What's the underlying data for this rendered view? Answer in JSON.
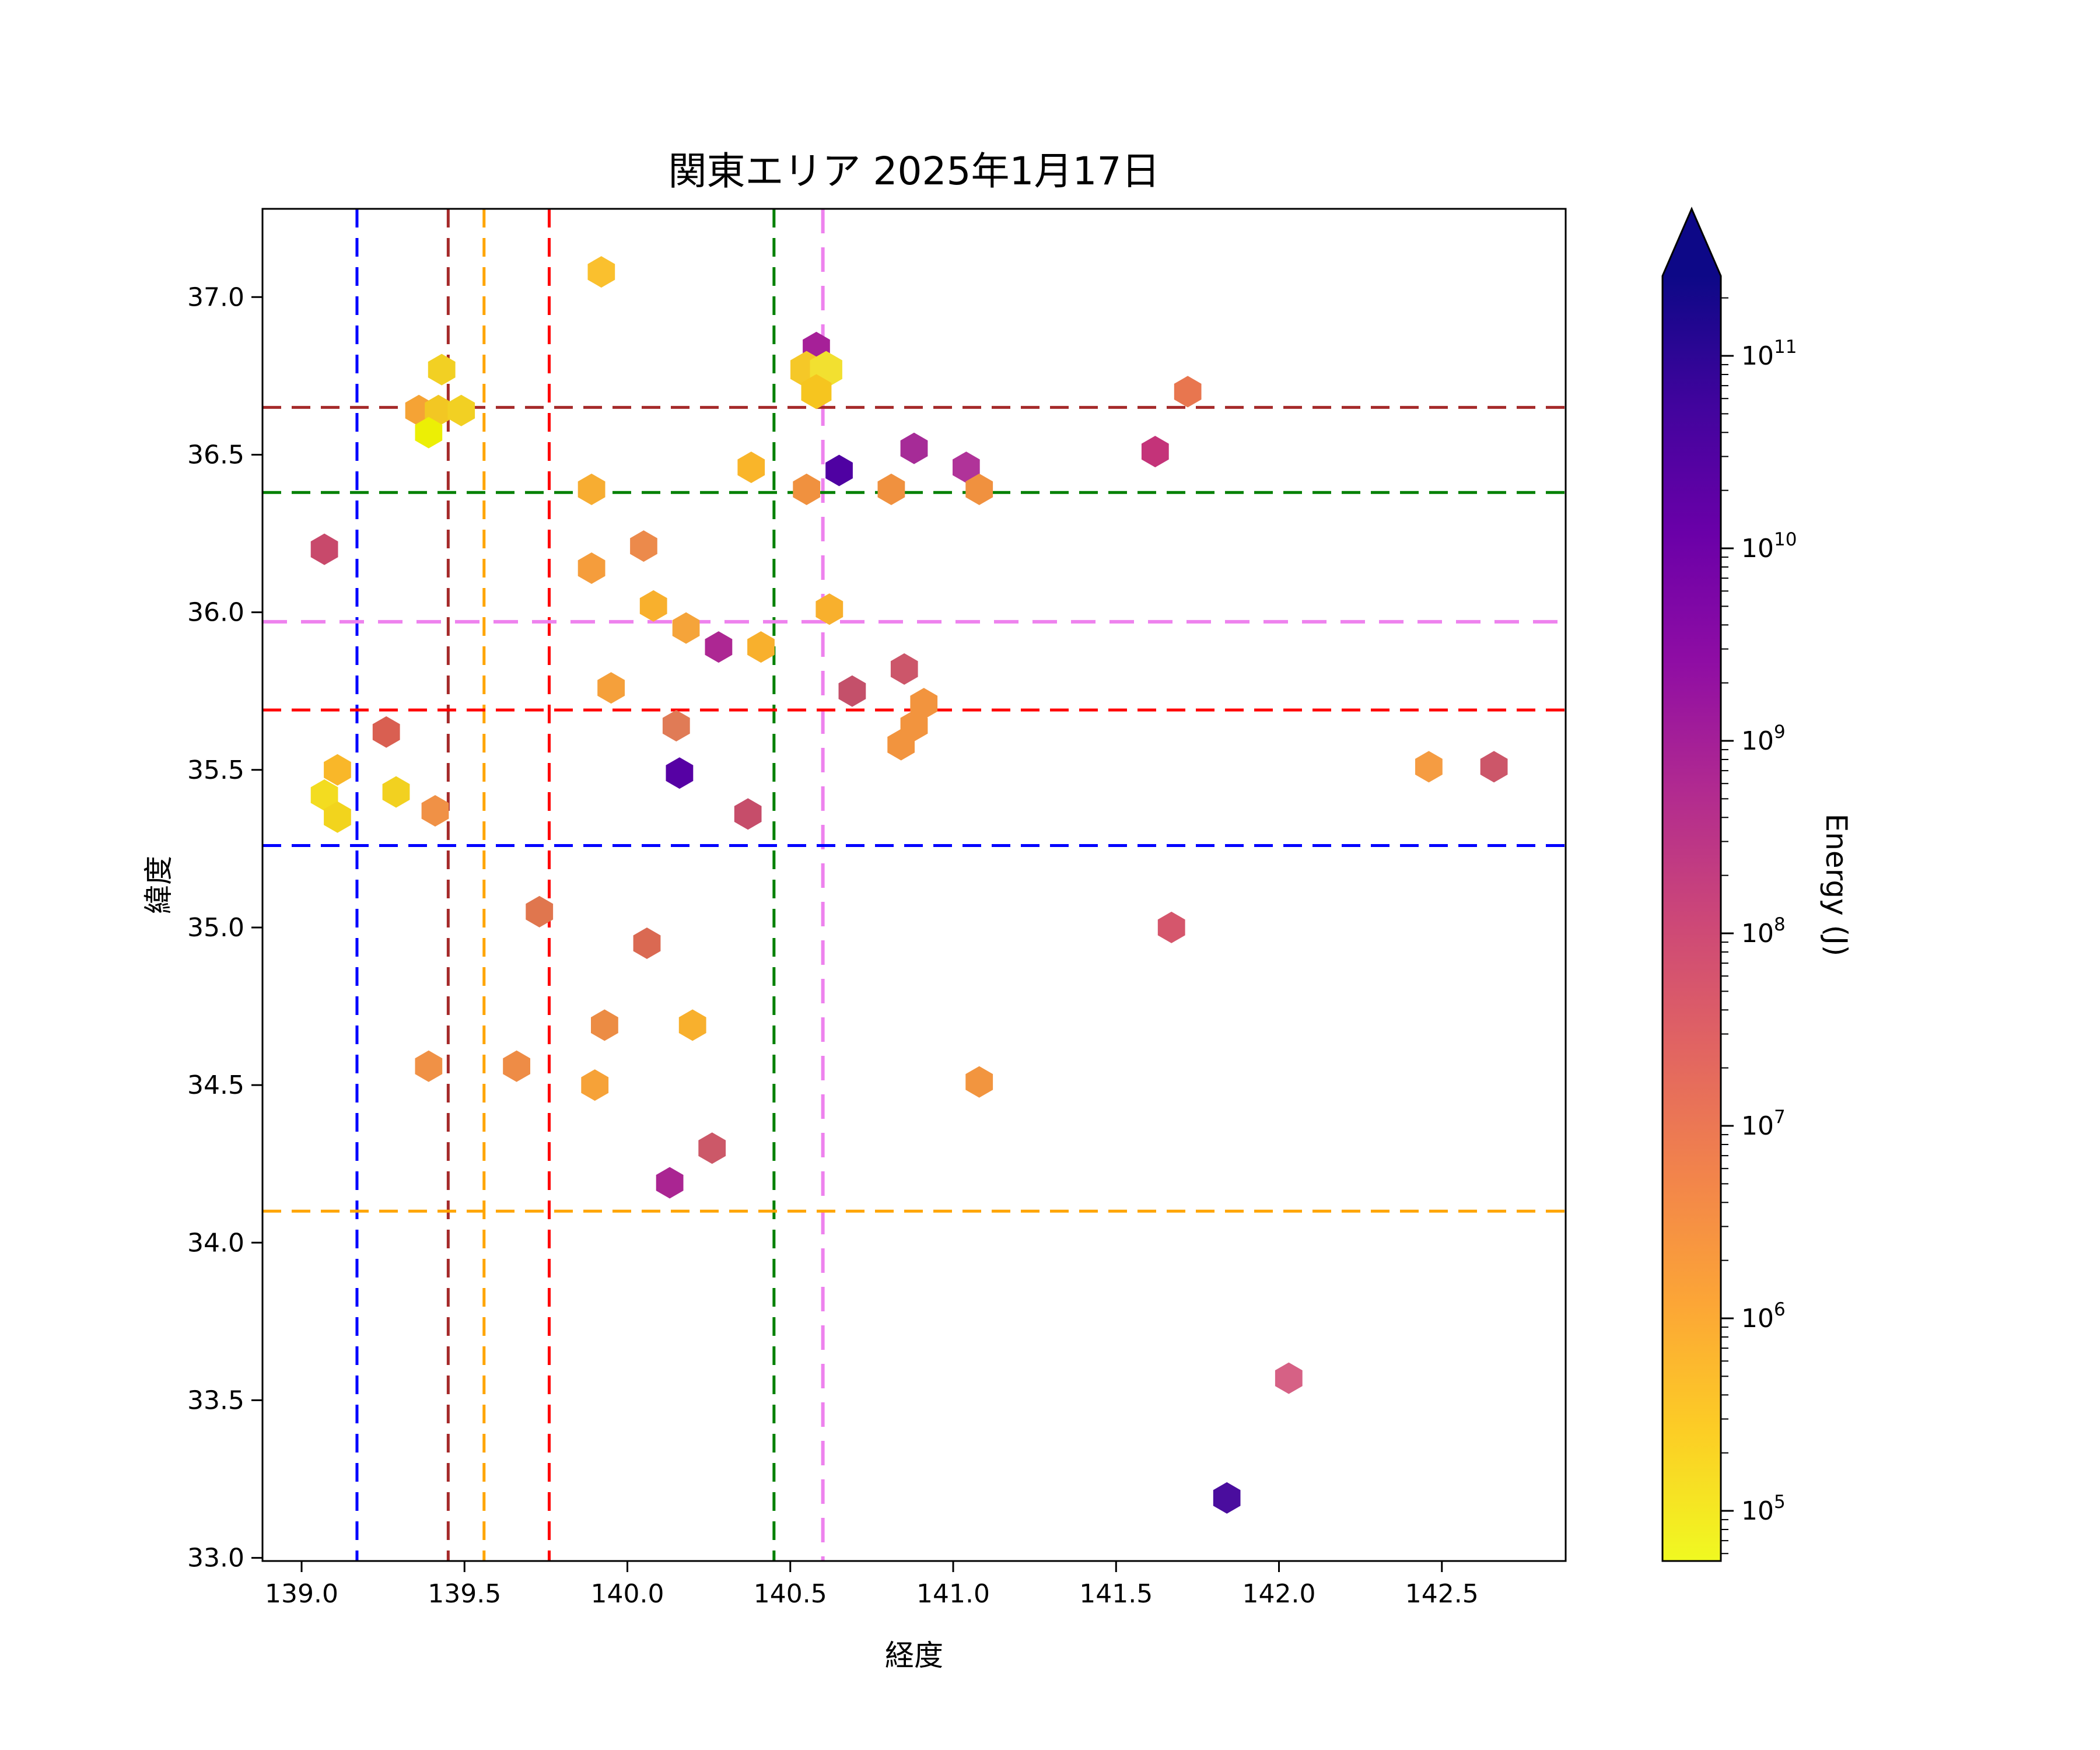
{
  "chart_data": {
    "type": "scatter",
    "title": "関東エリア 2025年1月17日",
    "xlabel": "経度",
    "ylabel": "緯度",
    "xlim": [
      138.88,
      142.88
    ],
    "ylim": [
      32.99,
      37.28
    ],
    "x_ticks": [
      139.0,
      139.5,
      140.0,
      140.5,
      141.0,
      141.5,
      142.0,
      142.5
    ],
    "y_ticks": [
      33.0,
      33.5,
      34.0,
      34.5,
      35.0,
      35.5,
      36.0,
      36.5,
      37.0
    ],
    "grid": false,
    "legend": "none",
    "marker": "hexagon",
    "frame_color": "#000000",
    "colorbar": {
      "label": "Energy (J)",
      "scale": "log",
      "tick_exponents": [
        5,
        6,
        7,
        8,
        9,
        10,
        11
      ],
      "extend": "max",
      "colormap": "plasma-reversed-vertical (yellow=low energy bottom, navy=high energy top)",
      "arrow_color": "#0d0887",
      "gradient_stops": [
        {
          "offset": 0.0,
          "color": "#0d0887"
        },
        {
          "offset": 0.1,
          "color": "#41049d"
        },
        {
          "offset": 0.2,
          "color": "#6a00a8"
        },
        {
          "offset": 0.3,
          "color": "#8f0da4"
        },
        {
          "offset": 0.4,
          "color": "#b12a90"
        },
        {
          "offset": 0.5,
          "color": "#cc4778"
        },
        {
          "offset": 0.6,
          "color": "#e16462"
        },
        {
          "offset": 0.7,
          "color": "#f2844b"
        },
        {
          "offset": 0.8,
          "color": "#fca636"
        },
        {
          "offset": 0.9,
          "color": "#fcce25"
        },
        {
          "offset": 1.0,
          "color": "#f0f921"
        }
      ]
    },
    "reference_lines": {
      "vertical": [
        {
          "lon": 139.17,
          "color": "#0000ff"
        },
        {
          "lon": 139.45,
          "color": "#a52a2a"
        },
        {
          "lon": 139.56,
          "color": "#ffa500"
        },
        {
          "lon": 139.76,
          "color": "#ff0000"
        },
        {
          "lon": 140.45,
          "color": "#008000"
        },
        {
          "lon": 140.6,
          "color": "#ee82ee"
        }
      ],
      "horizontal": [
        {
          "lat": 36.65,
          "color": "#a52a2a"
        },
        {
          "lat": 36.38,
          "color": "#008000"
        },
        {
          "lat": 35.97,
          "color": "#ee82ee"
        },
        {
          "lat": 35.69,
          "color": "#ff0000"
        },
        {
          "lat": 35.26,
          "color": "#0000ff"
        },
        {
          "lat": 34.1,
          "color": "#ffa500"
        }
      ]
    },
    "points": [
      {
        "lon": 139.92,
        "lat": 37.08,
        "color": "#fac02e",
        "energy_J": 800000.0
      },
      {
        "lon": 140.58,
        "lat": 36.84,
        "color": "#a62098",
        "energy_J": 1500000000.0
      },
      {
        "lon": 140.55,
        "lat": 36.77,
        "color": "#f5c828",
        "energy_J": 600000.0,
        "r": 32
      },
      {
        "lon": 140.61,
        "lat": 36.77,
        "color": "#f2e030",
        "energy_J": 200000.0,
        "r": 32
      },
      {
        "lon": 140.58,
        "lat": 36.7,
        "color": "#f6c51f",
        "energy_J": 600000.0,
        "r": 30
      },
      {
        "lon": 139.43,
        "lat": 36.77,
        "color": "#f2d023",
        "energy_J": 300000.0
      },
      {
        "lon": 139.36,
        "lat": 36.64,
        "color": "#f5a335",
        "energy_J": 2000000.0
      },
      {
        "lon": 139.42,
        "lat": 36.64,
        "color": "#f2c723",
        "energy_J": 400000.0
      },
      {
        "lon": 139.49,
        "lat": 36.64,
        "color": "#f2d023",
        "energy_J": 300000.0
      },
      {
        "lon": 139.39,
        "lat": 36.57,
        "color": "#ecef05",
        "energy_J": 80000.0
      },
      {
        "lon": 141.72,
        "lat": 36.7,
        "color": "#e8764f",
        "energy_J": 20000000.0
      },
      {
        "lon": 141.62,
        "lat": 36.51,
        "color": "#c43379",
        "energy_J": 300000000.0
      },
      {
        "lon": 140.38,
        "lat": 36.46,
        "color": "#f9b52a",
        "energy_J": 700000.0
      },
      {
        "lon": 140.65,
        "lat": 36.45,
        "color": "#4f01a2",
        "energy_J": 20000000000.0
      },
      {
        "lon": 140.88,
        "lat": 36.52,
        "color": "#a62b97",
        "energy_J": 1200000000.0
      },
      {
        "lon": 141.04,
        "lat": 36.46,
        "color": "#b03399",
        "energy_J": 800000000.0
      },
      {
        "lon": 139.89,
        "lat": 36.39,
        "color": "#f7ad32",
        "energy_J": 1500000.0
      },
      {
        "lon": 140.55,
        "lat": 36.39,
        "color": "#f0913f",
        "energy_J": 6000000.0
      },
      {
        "lon": 140.81,
        "lat": 36.39,
        "color": "#f0913f",
        "energy_J": 6000000.0
      },
      {
        "lon": 141.08,
        "lat": 36.39,
        "color": "#f0913f",
        "energy_J": 6000000.0
      },
      {
        "lon": 139.07,
        "lat": 36.2,
        "color": "#c8496b",
        "energy_J": 150000000.0
      },
      {
        "lon": 140.05,
        "lat": 36.21,
        "color": "#ec8a4b",
        "energy_J": 10000000.0
      },
      {
        "lon": 139.89,
        "lat": 36.14,
        "color": "#f59d3c",
        "energy_J": 2000000.0
      },
      {
        "lon": 140.08,
        "lat": 36.02,
        "color": "#f8b02d",
        "energy_J": 1000000.0
      },
      {
        "lon": 140.62,
        "lat": 36.01,
        "color": "#f8b02d",
        "energy_J": 1000000.0
      },
      {
        "lon": 140.18,
        "lat": 35.95,
        "color": "#f5a43a",
        "energy_J": 2000000.0
      },
      {
        "lon": 140.28,
        "lat": 35.89,
        "color": "#ad2793",
        "energy_J": 1000000000.0
      },
      {
        "lon": 140.41,
        "lat": 35.89,
        "color": "#f8b02d",
        "energy_J": 1000000.0
      },
      {
        "lon": 139.95,
        "lat": 35.76,
        "color": "#f5a03b",
        "energy_J": 2000000.0
      },
      {
        "lon": 140.69,
        "lat": 35.75,
        "color": "#c4506a",
        "energy_J": 120000000.0
      },
      {
        "lon": 140.85,
        "lat": 35.82,
        "color": "#cc566a",
        "energy_J": 100000000.0
      },
      {
        "lon": 140.91,
        "lat": 35.71,
        "color": "#f2943e",
        "energy_J": 6000000.0
      },
      {
        "lon": 140.88,
        "lat": 35.64,
        "color": "#f2943e",
        "energy_J": 6000000.0
      },
      {
        "lon": 140.84,
        "lat": 35.58,
        "color": "#f2943e",
        "energy_J": 6000000.0
      },
      {
        "lon": 139.26,
        "lat": 35.62,
        "color": "#d95f51",
        "energy_J": 30000000.0
      },
      {
        "lon": 140.15,
        "lat": 35.64,
        "color": "#e07b56",
        "energy_J": 20000000.0
      },
      {
        "lon": 140.16,
        "lat": 35.49,
        "color": "#5601a4",
        "energy_J": 20000000000.0
      },
      {
        "lon": 139.11,
        "lat": 35.5,
        "color": "#f9b729",
        "energy_J": 700000.0
      },
      {
        "lon": 139.07,
        "lat": 35.42,
        "color": "#f3dc20",
        "energy_J": 200000.0
      },
      {
        "lon": 139.11,
        "lat": 35.35,
        "color": "#f2d41d",
        "energy_J": 250000.0
      },
      {
        "lon": 139.29,
        "lat": 35.43,
        "color": "#f2d120",
        "energy_J": 300000.0
      },
      {
        "lon": 139.41,
        "lat": 35.37,
        "color": "#f09146",
        "energy_J": 5000000.0
      },
      {
        "lon": 140.37,
        "lat": 35.36,
        "color": "#c64d6a",
        "energy_J": 130000000.0
      },
      {
        "lon": 142.46,
        "lat": 35.51,
        "color": "#f59c42",
        "energy_J": 3000000.0
      },
      {
        "lon": 142.66,
        "lat": 35.51,
        "color": "#cc5669",
        "energy_J": 100000000.0
      },
      {
        "lon": 139.73,
        "lat": 35.05,
        "color": "#e0764e",
        "energy_J": 25000000.0
      },
      {
        "lon": 141.67,
        "lat": 35.0,
        "color": "#d5566c",
        "energy_J": 90000000.0
      },
      {
        "lon": 140.06,
        "lat": 34.95,
        "color": "#da6952",
        "energy_J": 30000000.0
      },
      {
        "lon": 139.93,
        "lat": 34.69,
        "color": "#ec8c44",
        "energy_J": 8000000.0
      },
      {
        "lon": 140.2,
        "lat": 34.69,
        "color": "#f8b02d",
        "energy_J": 1000000.0
      },
      {
        "lon": 139.39,
        "lat": 34.56,
        "color": "#f09146",
        "energy_J": 5000000.0
      },
      {
        "lon": 139.66,
        "lat": 34.56,
        "color": "#ee8c46",
        "energy_J": 7000000.0
      },
      {
        "lon": 139.9,
        "lat": 34.5,
        "color": "#f6a238",
        "energy_J": 2000000.0
      },
      {
        "lon": 141.08,
        "lat": 34.51,
        "color": "#f2953f",
        "energy_J": 5000000.0
      },
      {
        "lon": 140.26,
        "lat": 34.3,
        "color": "#cc5868",
        "energy_J": 100000000.0
      },
      {
        "lon": 140.13,
        "lat": 34.19,
        "color": "#aa2592",
        "energy_J": 1300000000.0
      },
      {
        "lon": 142.03,
        "lat": 33.57,
        "color": "#d66185",
        "energy_J": 60000000.0
      },
      {
        "lon": 141.84,
        "lat": 33.19,
        "color": "#4a0d9e",
        "energy_J": 40000000000.0
      }
    ]
  }
}
